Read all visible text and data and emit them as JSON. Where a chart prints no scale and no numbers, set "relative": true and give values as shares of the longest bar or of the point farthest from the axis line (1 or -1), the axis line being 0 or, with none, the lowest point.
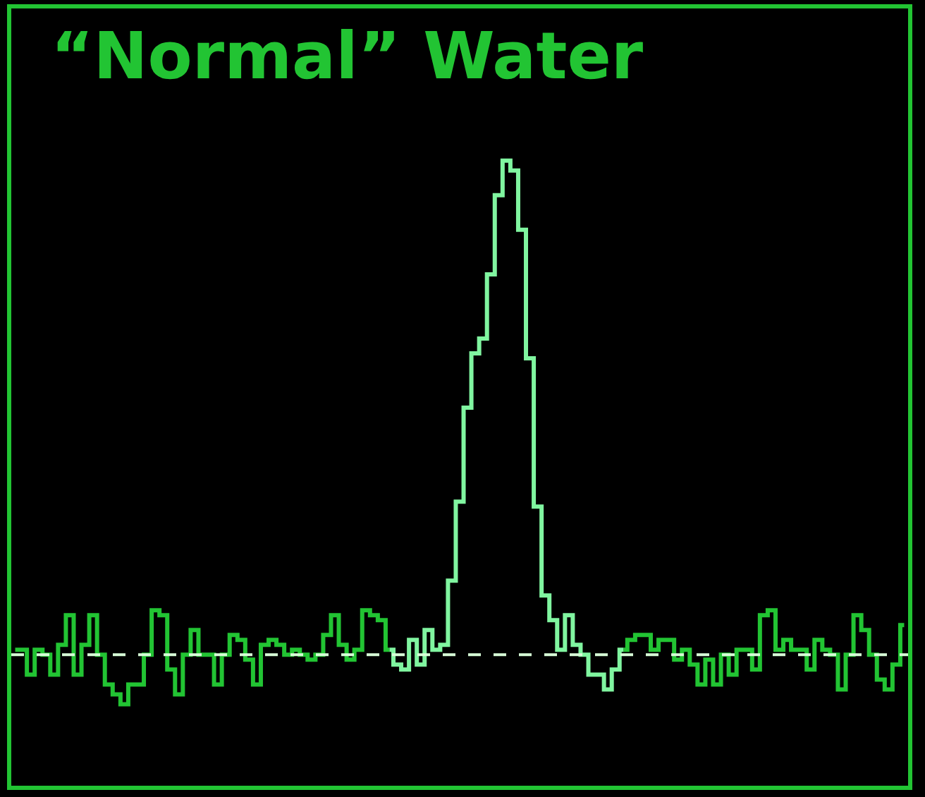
{
  "chart_data": {
    "type": "step",
    "title": "“Normal” Water",
    "relative": true,
    "categories": [
      null,
      null,
      null,
      null,
      null,
      null,
      null,
      null,
      null,
      null,
      null,
      null,
      null,
      null,
      null,
      null,
      null,
      null,
      null,
      null,
      null,
      null,
      null,
      null,
      null,
      null,
      null,
      null,
      null,
      null,
      null,
      null,
      null,
      null,
      null,
      null,
      null,
      null,
      null,
      null,
      null,
      null,
      null,
      null,
      null,
      null,
      null,
      null,
      null,
      null,
      null,
      null,
      null,
      null,
      null,
      null,
      null,
      null,
      null,
      null,
      null,
      null,
      null,
      null,
      null,
      null,
      null,
      null,
      null,
      null,
      null,
      null,
      null,
      null,
      null,
      null,
      null,
      null,
      null,
      null,
      null,
      null,
      null,
      null,
      null,
      null,
      null,
      null,
      null,
      null,
      null,
      null,
      null,
      null,
      null,
      null,
      null,
      null,
      null,
      null,
      null,
      null,
      null,
      null,
      null,
      null,
      null,
      null,
      null,
      null,
      null,
      null,
      null,
      null,
      null
    ],
    "series": [
      {
        "color": "#22c433",
        "values": [
          0.01,
          0.01,
          -0.04,
          0.01,
          0,
          -0.04,
          0.02,
          0.08,
          -0.04,
          0.02,
          0.08,
          0,
          -0.06,
          -0.08,
          -0.1,
          -0.06,
          -0.06,
          0,
          0.09,
          0.08,
          -0.03,
          -0.08,
          0,
          0.05,
          0,
          0,
          -0.06,
          0,
          0.04,
          0.03,
          -0.01,
          -0.06,
          0.02,
          0.03,
          0.02,
          0,
          0.01,
          0,
          -0.01,
          0,
          0.04,
          0.08,
          0.02,
          -0.01,
          0.01,
          0.09,
          0.08,
          0.07,
          0.01,
          null,
          null,
          null,
          null,
          null,
          null,
          null,
          null,
          null,
          null,
          null,
          null,
          null,
          null,
          null,
          null,
          null,
          null,
          null,
          null,
          null,
          null,
          null,
          null,
          null,
          null,
          null,
          null,
          null,
          0.01,
          0.03,
          0.04,
          0.04,
          0.01,
          0.03,
          0.03,
          -0.01,
          0.01,
          -0.02,
          -0.06,
          -0.01,
          -0.06,
          0,
          -0.04,
          0.01,
          0.01,
          -0.03,
          0.08,
          0.09,
          0.01,
          0.03,
          0.01,
          0.01,
          -0.03,
          0.03,
          0.01,
          0,
          -0.07,
          0,
          0.08,
          0.05,
          0,
          -0.05,
          -0.07,
          -0.02,
          0.06
        ]
      },
      {
        "color": "#80f5a0",
        "values": [
          null,
          null,
          null,
          null,
          null,
          null,
          null,
          null,
          null,
          null,
          null,
          null,
          null,
          null,
          null,
          null,
          null,
          null,
          null,
          null,
          null,
          null,
          null,
          null,
          null,
          null,
          null,
          null,
          null,
          null,
          null,
          null,
          null,
          null,
          null,
          null,
          null,
          null,
          null,
          null,
          null,
          null,
          null,
          null,
          null,
          null,
          null,
          null,
          0.01,
          -0.02,
          -0.03,
          0.03,
          -0.02,
          0.05,
          0.01,
          0.02,
          0.15,
          0.31,
          0.5,
          0.61,
          0.64,
          0.77,
          0.93,
          1,
          0.98,
          0.86,
          0.6,
          0.3,
          0.12,
          0.07,
          0.01,
          0.08,
          0.02,
          0,
          -0.04,
          -0.04,
          -0.07,
          -0.03,
          0.01,
          null,
          null,
          null,
          null,
          null,
          null,
          null,
          null,
          null,
          null,
          null,
          null,
          null,
          null,
          null,
          null,
          null,
          null,
          null,
          null,
          null,
          null,
          null,
          null,
          null,
          null,
          null,
          null,
          null,
          null,
          null,
          null,
          null,
          null,
          null,
          null
        ]
      }
    ],
    "ref_lines": [
      {
        "axis": "y",
        "value": 0,
        "color": "#d8ffd8",
        "line_style": "dashed"
      }
    ],
    "marker": "none",
    "line_style": "solid"
  }
}
